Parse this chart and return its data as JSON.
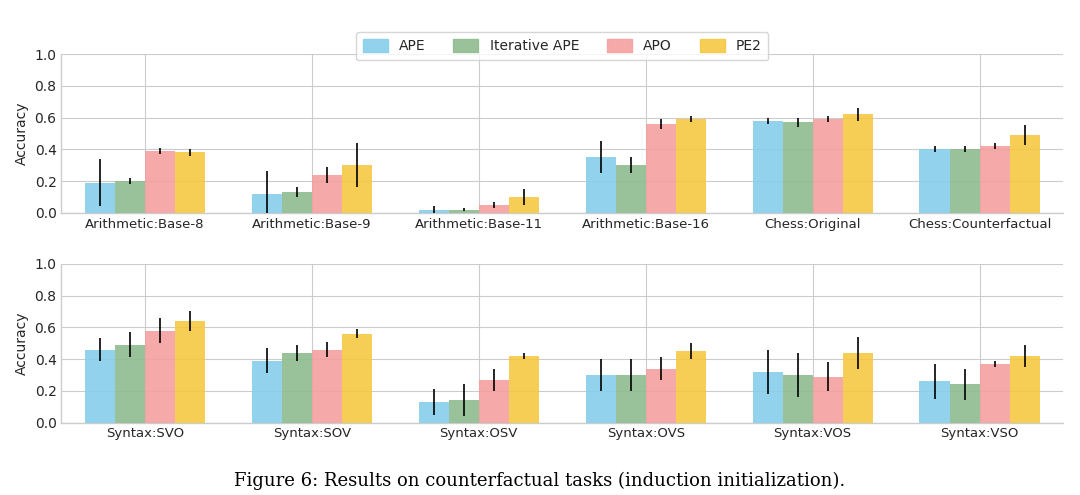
{
  "top_categories": [
    "Arithmetic:Base-8",
    "Arithmetic:Base-9",
    "Arithmetic:Base-11",
    "Arithmetic:Base-16",
    "Chess:Original",
    "Chess:Counterfactual"
  ],
  "bottom_categories": [
    "Syntax:SVO",
    "Syntax:SOV",
    "Syntax:OSV",
    "Syntax:OVS",
    "Syntax:VOS",
    "Syntax:VSO"
  ],
  "methods": [
    "APE",
    "Iterative APE",
    "APO",
    "PE2"
  ],
  "colors": [
    "#87CEEB",
    "#8FBC8F",
    "#F4A0A0",
    "#F5C842"
  ],
  "top_values": {
    "APE": [
      0.19,
      0.12,
      0.02,
      0.35,
      0.58,
      0.4
    ],
    "Iterative APE": [
      0.2,
      0.13,
      0.02,
      0.3,
      0.57,
      0.4
    ],
    "APO": [
      0.39,
      0.24,
      0.05,
      0.56,
      0.59,
      0.42
    ],
    "PE2": [
      0.38,
      0.3,
      0.1,
      0.59,
      0.62,
      0.49
    ]
  },
  "top_errors": {
    "APE": [
      0.15,
      0.14,
      0.02,
      0.1,
      0.02,
      0.02
    ],
    "Iterative APE": [
      0.02,
      0.03,
      0.01,
      0.05,
      0.03,
      0.02
    ],
    "APO": [
      0.02,
      0.05,
      0.02,
      0.03,
      0.02,
      0.02
    ],
    "PE2": [
      0.02,
      0.14,
      0.05,
      0.02,
      0.04,
      0.06
    ]
  },
  "bottom_values": {
    "APE": [
      0.46,
      0.39,
      0.13,
      0.3,
      0.32,
      0.26
    ],
    "Iterative APE": [
      0.49,
      0.44,
      0.14,
      0.3,
      0.3,
      0.24
    ],
    "APO": [
      0.58,
      0.46,
      0.27,
      0.34,
      0.29,
      0.37
    ],
    "PE2": [
      0.64,
      0.56,
      0.42,
      0.45,
      0.44,
      0.42
    ]
  },
  "bottom_errors": {
    "APE": [
      0.07,
      0.08,
      0.08,
      0.1,
      0.14,
      0.11
    ],
    "Iterative APE": [
      0.08,
      0.05,
      0.1,
      0.1,
      0.14,
      0.1
    ],
    "APO": [
      0.08,
      0.05,
      0.07,
      0.07,
      0.09,
      0.02
    ],
    "PE2": [
      0.06,
      0.03,
      0.02,
      0.05,
      0.1,
      0.07
    ]
  },
  "ylabel": "Accuracy",
  "ylim": [
    0.0,
    1.0
  ],
  "yticks": [
    0.0,
    0.2,
    0.4,
    0.6,
    0.8,
    1.0
  ],
  "caption": "Figure 6: Results on counterfactual tasks (induction initialization).",
  "bar_width": 0.18,
  "ax_facecolor": "#EAEAF2",
  "grid_color": "#ffffff",
  "figure_facecolor": "#ffffff"
}
